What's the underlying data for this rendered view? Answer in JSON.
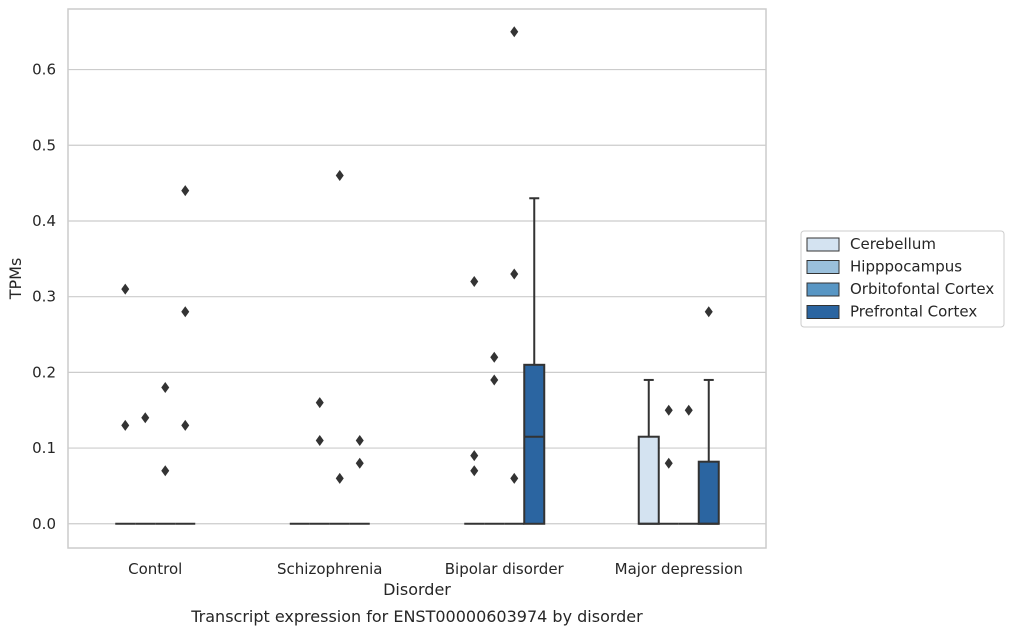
{
  "caption": "Transcript expression for ENST00000603974 by disorder",
  "chart_data": {
    "type": "box",
    "xlabel": "Disorder",
    "ylabel": "TPMs",
    "ylim": [
      -0.032,
      0.68
    ],
    "yticks": [
      0.0,
      0.1,
      0.2,
      0.3,
      0.4,
      0.5,
      0.6
    ],
    "grid": "horizontal",
    "legend_position": "right",
    "categories": [
      "Control",
      "Schizophrenia",
      "Bipolar disorder",
      "Major depression"
    ],
    "series": [
      {
        "name": "Cerebellum",
        "color": "#d4e3f1",
        "boxes": [
          {
            "q1": 0,
            "median": 0,
            "q3": 0,
            "whisker_low": 0,
            "whisker_high": 0,
            "outliers": [
              0.13,
              0.31
            ]
          },
          {
            "q1": 0,
            "median": 0,
            "q3": 0,
            "whisker_low": 0,
            "whisker_high": 0,
            "outliers": []
          },
          {
            "q1": 0,
            "median": 0,
            "q3": 0,
            "whisker_low": 0,
            "whisker_high": 0,
            "outliers": [
              0.07,
              0.09,
              0.32
            ]
          },
          {
            "q1": 0,
            "median": 0,
            "q3": 0.115,
            "whisker_low": 0,
            "whisker_high": 0.19,
            "outliers": []
          }
        ]
      },
      {
        "name": "Hipppocampus",
        "color": "#9ac0dc",
        "boxes": [
          {
            "q1": 0,
            "median": 0,
            "q3": 0,
            "whisker_low": 0,
            "whisker_high": 0,
            "outliers": [
              0.14
            ]
          },
          {
            "q1": 0,
            "median": 0,
            "q3": 0,
            "whisker_low": 0,
            "whisker_high": 0,
            "outliers": [
              0.11,
              0.16
            ]
          },
          {
            "q1": 0,
            "median": 0,
            "q3": 0,
            "whisker_low": 0,
            "whisker_high": 0,
            "outliers": [
              0.19,
              0.22
            ]
          },
          {
            "q1": 0,
            "median": 0,
            "q3": 0,
            "whisker_low": 0,
            "whisker_high": 0,
            "outliers": [
              0.08,
              0.15
            ]
          }
        ]
      },
      {
        "name": "Orbitofontal Cortex",
        "color": "#5896c4",
        "boxes": [
          {
            "q1": 0,
            "median": 0,
            "q3": 0,
            "whisker_low": 0,
            "whisker_high": 0,
            "outliers": [
              0.07,
              0.18
            ]
          },
          {
            "q1": 0,
            "median": 0,
            "q3": 0,
            "whisker_low": 0,
            "whisker_high": 0,
            "outliers": [
              0.06,
              0.46
            ]
          },
          {
            "q1": 0,
            "median": 0,
            "q3": 0,
            "whisker_low": 0,
            "whisker_high": 0,
            "outliers": [
              0.06,
              0.33,
              0.65
            ]
          },
          {
            "q1": 0,
            "median": 0,
            "q3": 0,
            "whisker_low": 0,
            "whisker_high": 0,
            "outliers": [
              0.15
            ]
          }
        ]
      },
      {
        "name": "Prefrontal Cortex",
        "color": "#2b65a1",
        "boxes": [
          {
            "q1": 0,
            "median": 0,
            "q3": 0,
            "whisker_low": 0,
            "whisker_high": 0,
            "outliers": [
              0.13,
              0.28,
              0.44
            ]
          },
          {
            "q1": 0,
            "median": 0,
            "q3": 0,
            "whisker_low": 0,
            "whisker_high": 0,
            "outliers": [
              0.08,
              0.11
            ]
          },
          {
            "q1": 0,
            "median": 0.115,
            "q3": 0.21,
            "whisker_low": 0,
            "whisker_high": 0.43,
            "outliers": []
          },
          {
            "q1": 0,
            "median": 0,
            "q3": 0.082,
            "whisker_low": 0,
            "whisker_high": 0.19,
            "outliers": [
              0.28
            ]
          }
        ]
      }
    ]
  }
}
